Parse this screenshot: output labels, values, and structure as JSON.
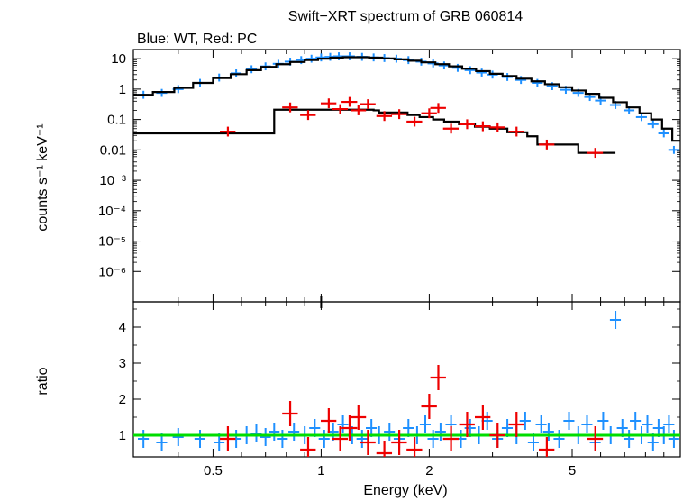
{
  "chart_data": [
    {
      "type": "scatter",
      "title": "Swift−XRT spectrum of GRB 060814",
      "subtitle": "Blue: WT, Red: PC",
      "ylabel": "counts s⁻¹ keV⁻¹",
      "xlabel": "",
      "log_x": true,
      "log_y": true,
      "xlim": [
        0.3,
        10.0
      ],
      "ylim": [
        1e-07,
        20
      ],
      "yticks": [
        {
          "value": 10,
          "label": "10"
        },
        {
          "value": 1,
          "label": "1"
        },
        {
          "value": 0.1,
          "label": "0.1"
        },
        {
          "value": 0.01,
          "label": "0.01"
        },
        {
          "value": 0.001,
          "label": "10⁻³"
        },
        {
          "value": 0.0001,
          "label": "10⁻⁴"
        },
        {
          "value": 1e-05,
          "label": "10⁻⁵"
        },
        {
          "value": 1e-06,
          "label": "10⁻⁶"
        }
      ],
      "series": [
        {
          "color": "#1e90ff",
          "points": [
            [
              0.32,
              0.65
            ],
            [
              0.36,
              0.75
            ],
            [
              0.4,
              1.0
            ],
            [
              0.46,
              1.6
            ],
            [
              0.52,
              2.4
            ],
            [
              0.58,
              3.3
            ],
            [
              0.64,
              4.5
            ],
            [
              0.7,
              5.6
            ],
            [
              0.76,
              6.8
            ],
            [
              0.82,
              8.0
            ],
            [
              0.88,
              9.0
            ],
            [
              0.94,
              10.0
            ],
            [
              1.0,
              11.0
            ],
            [
              1.06,
              11.5
            ],
            [
              1.12,
              12.0
            ],
            [
              1.2,
              12.0
            ],
            [
              1.3,
              11.5
            ],
            [
              1.4,
              11.0
            ],
            [
              1.5,
              10.5
            ],
            [
              1.62,
              10.0
            ],
            [
              1.75,
              9.0
            ],
            [
              1.9,
              8.0
            ],
            [
              2.05,
              7.0
            ],
            [
              2.2,
              6.0
            ],
            [
              2.4,
              5.0
            ],
            [
              2.6,
              4.2
            ],
            [
              2.8,
              3.5
            ],
            [
              3.0,
              3.0
            ],
            [
              3.3,
              2.5
            ],
            [
              3.6,
              2.0
            ],
            [
              4.0,
              1.6
            ],
            [
              4.4,
              1.25
            ],
            [
              4.8,
              0.95
            ],
            [
              5.2,
              0.75
            ],
            [
              5.6,
              0.55
            ],
            [
              6.0,
              0.42
            ],
            [
              6.6,
              0.3
            ],
            [
              7.2,
              0.2
            ],
            [
              7.8,
              0.12
            ],
            [
              8.4,
              0.07
            ],
            [
              9.0,
              0.035
            ],
            [
              9.6,
              0.01
            ]
          ]
        },
        {
          "color": "#ee0000",
          "points": [
            [
              0.55,
              0.04
            ],
            [
              0.82,
              0.25
            ],
            [
              0.92,
              0.14
            ],
            [
              1.05,
              0.34
            ],
            [
              1.13,
              0.22
            ],
            [
              1.2,
              0.38
            ],
            [
              1.27,
              0.2
            ],
            [
              1.35,
              0.32
            ],
            [
              1.5,
              0.13
            ],
            [
              1.65,
              0.15
            ],
            [
              1.82,
              0.085
            ],
            [
              2.0,
              0.16
            ],
            [
              2.12,
              0.24
            ],
            [
              2.3,
              0.05
            ],
            [
              2.55,
              0.07
            ],
            [
              2.82,
              0.06
            ],
            [
              3.1,
              0.055
            ],
            [
              3.5,
              0.04
            ],
            [
              4.25,
              0.015
            ],
            [
              5.8,
              0.008
            ]
          ]
        }
      ],
      "model": {
        "color": "#000000",
        "wt_steps": [
          [
            0.3,
            0.65
          ],
          [
            0.34,
            0.8
          ],
          [
            0.39,
            1.1
          ],
          [
            0.44,
            1.6
          ],
          [
            0.5,
            2.3
          ],
          [
            0.56,
            3.1
          ],
          [
            0.62,
            4.2
          ],
          [
            0.68,
            5.4
          ],
          [
            0.75,
            6.6
          ],
          [
            0.82,
            7.8
          ],
          [
            0.9,
            9.0
          ],
          [
            0.98,
            10.0
          ],
          [
            1.06,
            10.8
          ],
          [
            1.15,
            11.2
          ],
          [
            1.25,
            11.2
          ],
          [
            1.36,
            10.8
          ],
          [
            1.48,
            10.2
          ],
          [
            1.6,
            9.5
          ],
          [
            1.75,
            8.6
          ],
          [
            1.9,
            7.6
          ],
          [
            2.08,
            6.6
          ],
          [
            2.27,
            5.6
          ],
          [
            2.47,
            4.7
          ],
          [
            2.7,
            3.9
          ],
          [
            2.95,
            3.2
          ],
          [
            3.2,
            2.7
          ],
          [
            3.5,
            2.2
          ],
          [
            3.85,
            1.8
          ],
          [
            4.2,
            1.45
          ],
          [
            4.6,
            1.15
          ],
          [
            5.0,
            0.9
          ],
          [
            5.45,
            0.7
          ],
          [
            5.95,
            0.52
          ],
          [
            6.5,
            0.37
          ],
          [
            7.1,
            0.25
          ],
          [
            7.7,
            0.16
          ],
          [
            8.3,
            0.1
          ],
          [
            8.9,
            0.05
          ],
          [
            9.5,
            0.02
          ],
          [
            10.0,
            0.02
          ]
        ],
        "pc_steps": [
          [
            0.3,
            0.035
          ],
          [
            0.74,
            0.035
          ],
          [
            0.74,
            0.21
          ],
          [
            1.0,
            0.21
          ],
          [
            1.0,
            0.21
          ],
          [
            1.4,
            0.2
          ],
          [
            1.45,
            0.17
          ],
          [
            1.58,
            0.17
          ],
          [
            1.74,
            0.14
          ],
          [
            1.88,
            0.12
          ],
          [
            2.05,
            0.1
          ],
          [
            2.2,
            0.085
          ],
          [
            2.42,
            0.07
          ],
          [
            2.68,
            0.058
          ],
          [
            2.95,
            0.05
          ],
          [
            3.3,
            0.038
          ],
          [
            3.75,
            0.028
          ],
          [
            4.0,
            0.015
          ],
          [
            5.2,
            0.015
          ],
          [
            5.2,
            0.008
          ],
          [
            6.6,
            0.008
          ]
        ]
      }
    },
    {
      "type": "scatter",
      "ylabel": "ratio",
      "xlabel": "Energy (keV)",
      "log_x": true,
      "xlim": [
        0.3,
        10.0
      ],
      "ylim": [
        0.4,
        4.7
      ],
      "yticks": [
        {
          "value": 1,
          "label": "1"
        },
        {
          "value": 2,
          "label": "2"
        },
        {
          "value": 3,
          "label": "3"
        },
        {
          "value": 4,
          "label": "4"
        }
      ],
      "xticks": [
        {
          "value": 0.5,
          "label": "0.5"
        },
        {
          "value": 1,
          "label": "1"
        },
        {
          "value": 2,
          "label": "2"
        },
        {
          "value": 5,
          "label": "5"
        }
      ],
      "reference_line": {
        "value": 1,
        "color": "#00dd00"
      },
      "series": [
        {
          "color": "#1e90ff",
          "points": [
            [
              0.32,
              0.9
            ],
            [
              0.36,
              0.8
            ],
            [
              0.4,
              0.95
            ],
            [
              0.46,
              0.9
            ],
            [
              0.52,
              0.8
            ],
            [
              0.58,
              0.9
            ],
            [
              0.62,
              1.0
            ],
            [
              0.66,
              1.05
            ],
            [
              0.7,
              0.95
            ],
            [
              0.74,
              1.1
            ],
            [
              0.78,
              0.9
            ],
            [
              0.84,
              1.1
            ],
            [
              0.9,
              1.0
            ],
            [
              0.96,
              1.2
            ],
            [
              1.02,
              0.9
            ],
            [
              1.08,
              1.1
            ],
            [
              1.15,
              1.3
            ],
            [
              1.22,
              1.0
            ],
            [
              1.3,
              0.9
            ],
            [
              1.38,
              1.2
            ],
            [
              1.45,
              1.0
            ],
            [
              1.55,
              1.1
            ],
            [
              1.65,
              0.9
            ],
            [
              1.75,
              1.2
            ],
            [
              1.85,
              1.0
            ],
            [
              1.95,
              1.3
            ],
            [
              2.05,
              0.9
            ],
            [
              2.15,
              1.1
            ],
            [
              2.3,
              1.3
            ],
            [
              2.45,
              0.9
            ],
            [
              2.6,
              1.2
            ],
            [
              2.75,
              1.0
            ],
            [
              2.9,
              1.4
            ],
            [
              3.1,
              0.9
            ],
            [
              3.3,
              1.2
            ],
            [
              3.5,
              1.0
            ],
            [
              3.7,
              1.4
            ],
            [
              3.9,
              0.8
            ],
            [
              4.1,
              1.3
            ],
            [
              4.3,
              1.1
            ],
            [
              4.6,
              0.9
            ],
            [
              4.9,
              1.4
            ],
            [
              5.2,
              1.0
            ],
            [
              5.5,
              1.3
            ],
            [
              5.8,
              0.8
            ],
            [
              6.1,
              1.4
            ],
            [
              6.4,
              1.0
            ],
            [
              6.6,
              4.2
            ],
            [
              6.9,
              1.2
            ],
            [
              7.2,
              0.9
            ],
            [
              7.5,
              1.4
            ],
            [
              7.8,
              1.0
            ],
            [
              8.1,
              1.3
            ],
            [
              8.4,
              0.8
            ],
            [
              8.7,
              1.2
            ],
            [
              9.0,
              1.0
            ],
            [
              9.3,
              1.3
            ],
            [
              9.6,
              0.9
            ]
          ]
        },
        {
          "color": "#ee0000",
          "points": [
            [
              0.55,
              0.9
            ],
            [
              0.82,
              1.6
            ],
            [
              0.92,
              0.6
            ],
            [
              1.05,
              1.4
            ],
            [
              1.13,
              0.9
            ],
            [
              1.2,
              1.2
            ],
            [
              1.27,
              1.5
            ],
            [
              1.35,
              0.8
            ],
            [
              1.5,
              0.5
            ],
            [
              1.65,
              0.8
            ],
            [
              1.82,
              0.6
            ],
            [
              2.0,
              1.8
            ],
            [
              2.12,
              2.6
            ],
            [
              2.3,
              0.9
            ],
            [
              2.55,
              1.3
            ],
            [
              2.82,
              1.5
            ],
            [
              3.1,
              1.0
            ],
            [
              3.5,
              1.3
            ],
            [
              4.25,
              0.6
            ],
            [
              5.8,
              0.9
            ]
          ]
        }
      ]
    }
  ]
}
